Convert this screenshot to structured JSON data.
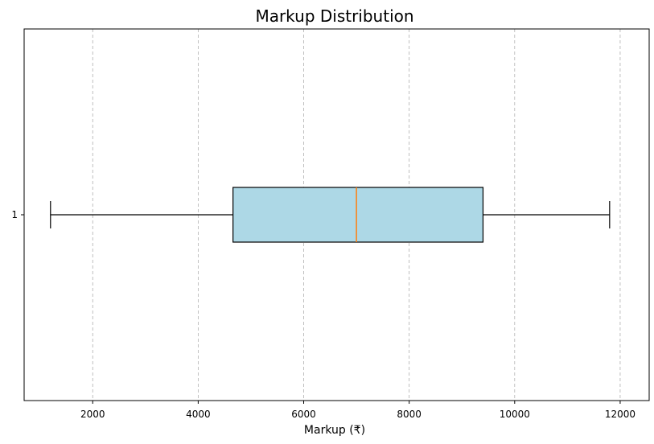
{
  "chart_data": {
    "type": "boxplot",
    "orientation": "horizontal",
    "title": "Markup Distribution",
    "xlabel": "Markup (₹)",
    "ylabel": "",
    "xlim": [
      700,
      12550
    ],
    "xticks": [
      2000,
      4000,
      6000,
      8000,
      10000,
      12000
    ],
    "yticks": [
      "1"
    ],
    "grid": {
      "x": true,
      "y": false,
      "style": "dashed"
    },
    "boxes": [
      {
        "label": "1",
        "whisker_low": 1200,
        "q1": 4660,
        "median": 7000,
        "q3": 9400,
        "whisker_high": 11800
      }
    ],
    "colors": {
      "box_fill": "#add8e6",
      "box_edge": "#000000",
      "median": "#ff7f0e",
      "grid": "#b0b0b0"
    }
  }
}
